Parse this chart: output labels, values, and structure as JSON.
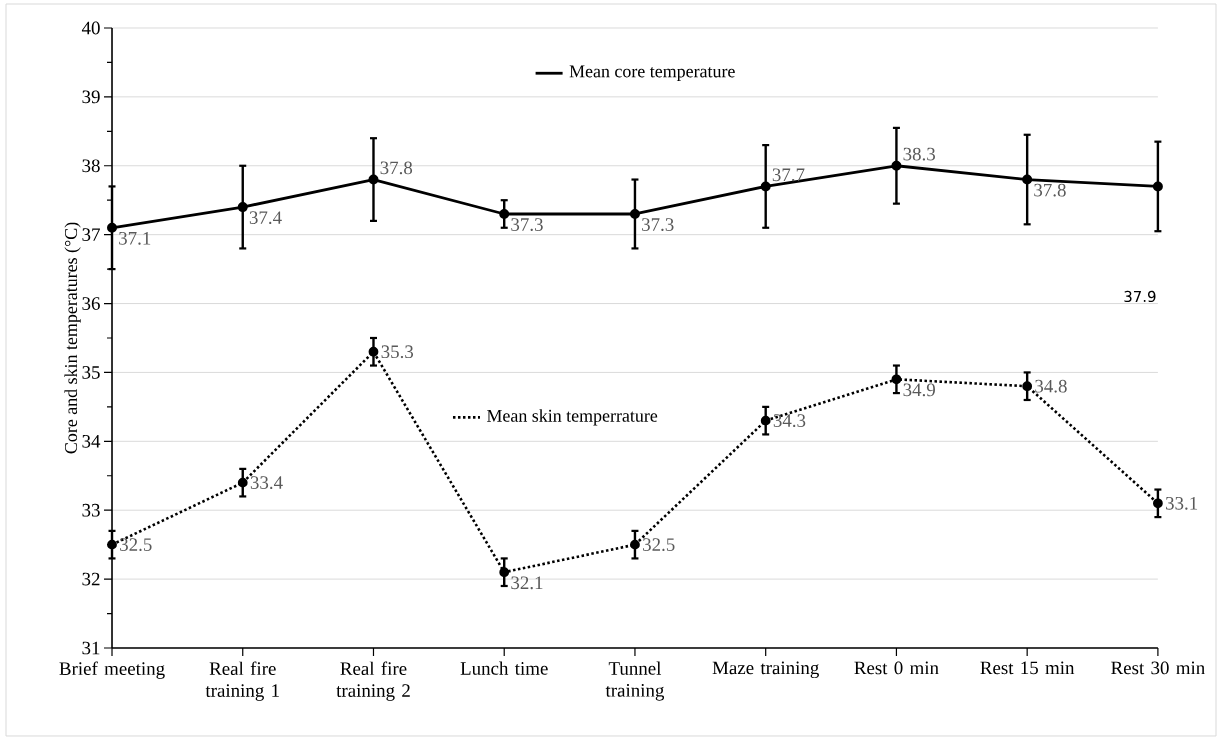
{
  "chart_data": {
    "type": "line",
    "ylabel": "Core and skin temperatures (°C)",
    "categories": [
      "Brief meeting",
      "Real fire training 1",
      "Real fire training 2",
      "Lunch time",
      "Tunnel training",
      "Maze training",
      "Rest 0 min",
      "Rest 15 min",
      "Rest 30 min"
    ],
    "ylim": [
      31,
      40
    ],
    "yticks": [
      31,
      32,
      33,
      34,
      35,
      36,
      37,
      38,
      39,
      40
    ],
    "grid": "y",
    "marker": "circle",
    "legend": "top",
    "annotations": [
      {
        "text": "38.3",
        "x": "Rest 0 min",
        "y": 38.0
      },
      "37.9"
    ],
    "series": [
      {
        "name": "Mean core temperature",
        "color": "#000000",
        "line_style": "solid",
        "values": [
          37.1,
          37.4,
          37.8,
          37.3,
          37.3,
          37.7,
          38.0,
          37.8,
          37.7
        ],
        "errors": [
          0.6,
          0.6,
          0.6,
          0.2,
          0.5,
          0.6,
          0.55,
          0.65,
          0.65
        ],
        "value_labels": [
          "37.1",
          "37.4",
          "37.8",
          "37.3",
          "37.3",
          "37.7",
          null,
          "37.8",
          null
        ]
      },
      {
        "name": "Mean skin temperrature",
        "color": "#000000",
        "line_style": "dotted",
        "values": [
          32.5,
          33.4,
          35.3,
          32.1,
          32.5,
          34.3,
          34.9,
          34.8,
          33.1
        ],
        "errors": [
          0.2,
          0.2,
          0.2,
          0.2,
          0.2,
          0.2,
          0.2,
          0.2,
          0.2
        ],
        "value_labels": [
          "32.5",
          "33.4",
          "35.3",
          "32.1",
          "32.5",
          "34.3",
          "34.9",
          "34.8",
          "33.1"
        ]
      }
    ]
  }
}
